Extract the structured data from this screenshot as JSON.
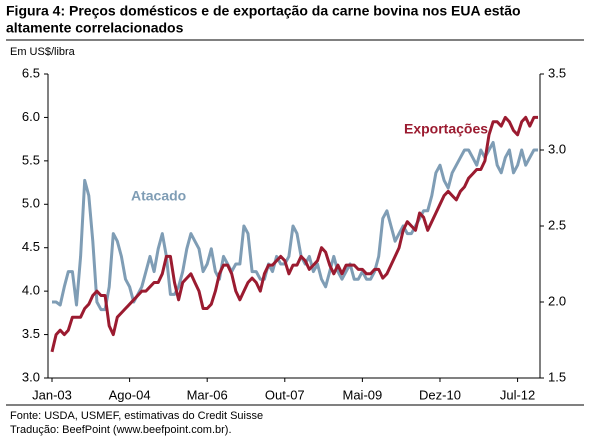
{
  "chart_data": {
    "type": "line",
    "title": [
      "Figura 4: Preços domésticos e de exportação da carne bovina nos EUA estão",
      "altamente correlacionados"
    ],
    "ylabel": "Em US$/libra",
    "categories": [
      "Jan-03",
      null,
      null,
      null,
      null,
      null,
      null,
      null,
      null,
      null,
      null,
      null,
      null,
      null,
      null,
      null,
      null,
      null,
      null,
      "Ago-04",
      null,
      null,
      null,
      null,
      null,
      null,
      null,
      null,
      null,
      null,
      null,
      null,
      null,
      null,
      null,
      null,
      null,
      null,
      "Mar-06",
      null,
      null,
      null,
      null,
      null,
      null,
      null,
      null,
      null,
      null,
      null,
      null,
      null,
      null,
      null,
      null,
      null,
      null,
      "Out-07",
      null,
      null,
      null,
      null,
      null,
      null,
      null,
      null,
      null,
      null,
      null,
      null,
      null,
      null,
      null,
      null,
      null,
      null,
      "Mai-09",
      null,
      null,
      null,
      null,
      null,
      null,
      null,
      null,
      null,
      null,
      null,
      null,
      null,
      null,
      null,
      null,
      null,
      null,
      "Dez-10",
      null,
      null,
      null,
      null,
      null,
      null,
      null,
      null,
      null,
      null,
      null,
      null,
      null,
      null,
      null,
      null,
      null,
      null,
      "Jul-12",
      null,
      null,
      null,
      null,
      null
    ],
    "series": [
      {
        "name": "Exportações",
        "color": "#9b1b30",
        "axis": "y",
        "values": [
          3.3,
          3.5,
          3.55,
          3.5,
          3.55,
          3.7,
          3.7,
          3.7,
          3.8,
          3.85,
          3.95,
          4.0,
          3.95,
          3.95,
          3.6,
          3.5,
          3.7,
          3.75,
          3.8,
          3.85,
          3.9,
          3.95,
          4.0,
          4.0,
          4.05,
          4.1,
          4.1,
          4.2,
          4.4,
          4.4,
          4.1,
          3.9,
          4.1,
          4.15,
          4.2,
          4.1,
          4.0,
          3.8,
          3.8,
          3.85,
          4.0,
          4.2,
          4.3,
          4.3,
          4.2,
          4.0,
          3.9,
          4.0,
          4.1,
          4.15,
          4.1,
          4.0,
          4.2,
          4.3,
          4.3,
          4.35,
          4.4,
          4.35,
          4.2,
          4.3,
          4.3,
          4.4,
          4.35,
          4.25,
          4.3,
          4.35,
          4.5,
          4.45,
          4.3,
          4.2,
          4.3,
          4.2,
          4.3,
          4.3,
          4.3,
          4.25,
          4.25,
          4.2,
          4.2,
          4.25,
          4.25,
          4.15,
          4.2,
          4.3,
          4.4,
          4.5,
          4.7,
          4.8,
          4.75,
          4.7,
          4.9,
          4.85,
          4.7,
          4.8,
          4.9,
          5.0,
          5.1,
          5.15,
          5.1,
          5.05,
          5.15,
          5.2,
          5.3,
          5.35,
          5.4,
          5.4,
          5.5,
          5.8,
          5.95,
          5.95,
          5.9,
          6.0,
          5.95,
          5.85,
          5.8,
          5.95,
          6.0,
          5.9,
          6.0,
          6.0
        ]
      },
      {
        "name": "Atacado",
        "color": "#7f9db5",
        "axis": "y2",
        "values": [
          2.0,
          2.0,
          1.98,
          2.1,
          2.2,
          2.2,
          1.98,
          2.3,
          2.8,
          2.7,
          2.4,
          2.0,
          1.95,
          1.95,
          2.1,
          2.45,
          2.4,
          2.3,
          2.15,
          2.1,
          2.0,
          2.05,
          2.1,
          2.2,
          2.3,
          2.2,
          2.35,
          2.45,
          2.3,
          2.05,
          2.05,
          2.1,
          2.2,
          2.35,
          2.45,
          2.4,
          2.35,
          2.2,
          2.25,
          2.35,
          2.2,
          2.15,
          2.3,
          2.25,
          2.2,
          2.25,
          2.25,
          2.5,
          2.45,
          2.2,
          2.2,
          2.15,
          2.15,
          2.25,
          2.2,
          2.3,
          2.25,
          2.25,
          2.3,
          2.5,
          2.45,
          2.3,
          2.25,
          2.3,
          2.2,
          2.25,
          2.15,
          2.1,
          2.2,
          2.3,
          2.2,
          2.15,
          2.2,
          2.25,
          2.15,
          2.15,
          2.2,
          2.15,
          2.15,
          2.2,
          2.3,
          2.55,
          2.6,
          2.5,
          2.4,
          2.45,
          2.5,
          2.45,
          2.45,
          2.5,
          2.55,
          2.6,
          2.6,
          2.7,
          2.85,
          2.9,
          2.8,
          2.75,
          2.85,
          2.9,
          2.95,
          3.0,
          3.0,
          2.95,
          2.9,
          3.0,
          2.95,
          3.0,
          3.05,
          2.9,
          2.85,
          2.95,
          3.0,
          2.85,
          2.9,
          3.0,
          2.9,
          2.95,
          3.0,
          3.0
        ]
      }
    ],
    "ylim": [
      3.0,
      6.5
    ],
    "yticks": [
      {
        "value": 3,
        "label": "3.0"
      },
      3.5,
      {
        "value": 4,
        "label": "4.0"
      },
      4.5,
      {
        "value": 5,
        "label": "5.0"
      },
      5.5,
      {
        "value": 6,
        "label": "6.0"
      },
      6.5
    ],
    "y2lim": [
      1.5,
      3.5
    ],
    "y2ticks": [
      1.5,
      {
        "value": 2,
        "label": "2.0"
      },
      2.5,
      {
        "value": 3,
        "label": "3.0"
      },
      3.5
    ],
    "footer": [
      "Fonte: USDA, USMEF, estimativas do Credit Suisse",
      "Tradução: BeefPoint (www.beefpoint.com.br)."
    ]
  }
}
